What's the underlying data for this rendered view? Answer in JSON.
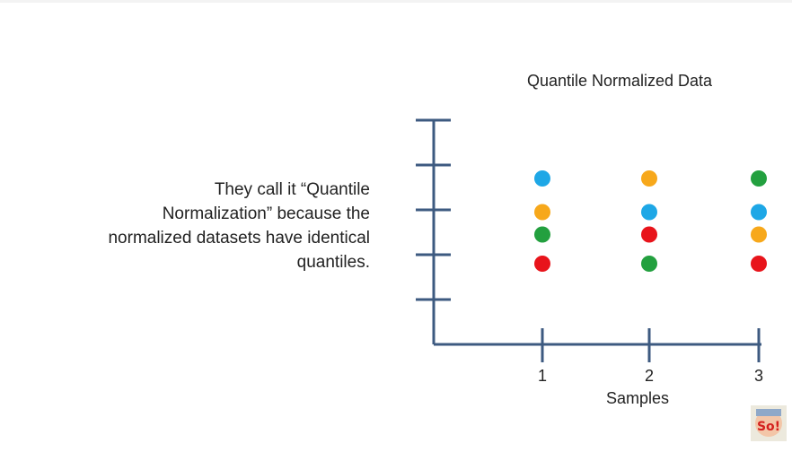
{
  "caption": "They call it “Quantile Normalization” because the normalized datasets have identical quantiles.",
  "chart_data": {
    "type": "scatter",
    "title": "Quantile Normalized Data",
    "xlabel": "Samples",
    "ylabel": "",
    "x_ticks": [
      "1",
      "2",
      "3"
    ],
    "y_ticks_count": 5,
    "ylim": [
      0,
      5
    ],
    "xlim": [
      0,
      3
    ],
    "grid": false,
    "points": [
      {
        "sample": 1,
        "y": 3.7,
        "color": "#1ea7e6"
      },
      {
        "sample": 1,
        "y": 2.95,
        "color": "#f7a81b"
      },
      {
        "sample": 1,
        "y": 2.45,
        "color": "#23a03f"
      },
      {
        "sample": 1,
        "y": 1.8,
        "color": "#e8141b"
      },
      {
        "sample": 2,
        "y": 3.7,
        "color": "#f7a81b"
      },
      {
        "sample": 2,
        "y": 2.95,
        "color": "#1ea7e6"
      },
      {
        "sample": 2,
        "y": 2.45,
        "color": "#e8141b"
      },
      {
        "sample": 2,
        "y": 1.8,
        "color": "#23a03f"
      },
      {
        "sample": 3,
        "y": 3.7,
        "color": "#23a03f"
      },
      {
        "sample": 3,
        "y": 2.95,
        "color": "#1ea7e6"
      },
      {
        "sample": 3,
        "y": 2.45,
        "color": "#f7a81b"
      },
      {
        "sample": 3,
        "y": 1.8,
        "color": "#e8141b"
      }
    ]
  },
  "colors": {
    "axis": "#3d5a80",
    "text": "#222222"
  },
  "logo": {
    "text": "So!"
  }
}
